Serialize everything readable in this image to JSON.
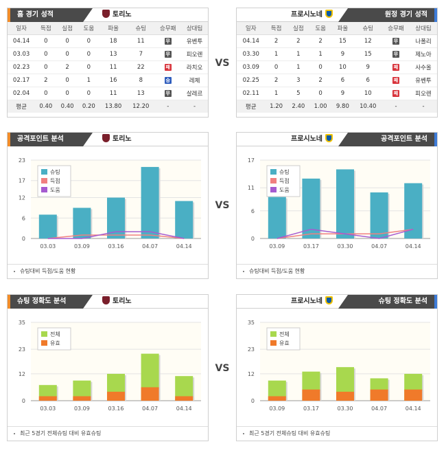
{
  "vs_label": "VS",
  "home": {
    "tab": "홈 경기 성적",
    "team": "토리노",
    "columns": [
      "일자",
      "득점",
      "실점",
      "도움",
      "파울",
      "슈팅",
      "승무패",
      "상대팀"
    ],
    "rows": [
      {
        "date": "04.14",
        "gf": "0",
        "ga": "0",
        "as": "0",
        "fo": "18",
        "sh": "11",
        "res": "d",
        "res_label": "무",
        "opp": "유벤투"
      },
      {
        "date": "03.03",
        "gf": "0",
        "ga": "0",
        "as": "0",
        "fo": "13",
        "sh": "7",
        "res": "d",
        "res_label": "무",
        "opp": "피오렌"
      },
      {
        "date": "02.23",
        "gf": "0",
        "ga": "2",
        "as": "0",
        "fo": "11",
        "sh": "22",
        "res": "l",
        "res_label": "패",
        "opp": "라치오"
      },
      {
        "date": "02.17",
        "gf": "2",
        "ga": "0",
        "as": "1",
        "fo": "16",
        "sh": "8",
        "res": "w",
        "res_label": "승",
        "opp": "레체"
      },
      {
        "date": "02.04",
        "gf": "0",
        "ga": "0",
        "as": "0",
        "fo": "11",
        "sh": "13",
        "res": "d",
        "res_label": "무",
        "opp": "살레르"
      }
    ],
    "avg": {
      "label": "평균",
      "gf": "0.40",
      "ga": "0.40",
      "as": "0.20",
      "fo": "13.80",
      "sh": "12.20",
      "res": "-",
      "opp": "-"
    }
  },
  "away": {
    "tab": "원정 경기 성적",
    "team": "프로시노네",
    "columns": [
      "일자",
      "득점",
      "실점",
      "도움",
      "파울",
      "슈팅",
      "승무패",
      "상대팀"
    ],
    "rows": [
      {
        "date": "04.14",
        "gf": "2",
        "ga": "2",
        "as": "2",
        "fo": "15",
        "sh": "12",
        "res": "d",
        "res_label": "무",
        "opp": "나폴리"
      },
      {
        "date": "03.30",
        "gf": "1",
        "ga": "1",
        "as": "1",
        "fo": "9",
        "sh": "15",
        "res": "d",
        "res_label": "무",
        "opp": "제노아"
      },
      {
        "date": "03.09",
        "gf": "0",
        "ga": "1",
        "as": "0",
        "fo": "10",
        "sh": "9",
        "res": "l",
        "res_label": "패",
        "opp": "사수올"
      },
      {
        "date": "02.25",
        "gf": "2",
        "ga": "3",
        "as": "2",
        "fo": "6",
        "sh": "6",
        "res": "l",
        "res_label": "패",
        "opp": "유벤투"
      },
      {
        "date": "02.11",
        "gf": "1",
        "ga": "5",
        "as": "0",
        "fo": "9",
        "sh": "10",
        "res": "l",
        "res_label": "패",
        "opp": "피오렌"
      }
    ],
    "avg": {
      "label": "평균",
      "gf": "1.20",
      "ga": "2.40",
      "as": "1.00",
      "fo": "9.80",
      "sh": "10.40",
      "res": "-",
      "opp": "-"
    }
  },
  "attack_home": {
    "tab": "공격포인트 분석",
    "team": "토리노",
    "note": "슈팅대비 득점/도움 현황"
  },
  "attack_away": {
    "tab": "공격포인트 분석",
    "team": "프로시노네",
    "note": "슈팅대비 득점/도움 현황"
  },
  "acc_home": {
    "tab": "슈팅 정확도 분석",
    "team": "토리노",
    "note": "최근 5경기 전체슈팅 대비 유효슈팅"
  },
  "acc_away": {
    "tab": "슈팅 정확도 분석",
    "team": "프로시노네",
    "note": "최근 5경기 전체슈팅 대비 유효슈팅"
  },
  "colors": {
    "shoot": "#4aafc4",
    "goal": "#f08080",
    "assist": "#a55bd0",
    "total": "#a8d84e",
    "on_target": "#f07a2a"
  },
  "chart_data": [
    {
      "id": "attack_home",
      "type": "bar",
      "categories": [
        "03.03",
        "03.09",
        "03.16",
        "04.07",
        "04.14"
      ],
      "yticks": [
        0,
        6,
        12,
        17,
        23
      ],
      "ylim": [
        0,
        23
      ],
      "series": [
        {
          "name": "슈팅",
          "kind": "bar",
          "values": [
            7,
            9,
            12,
            21,
            11
          ]
        },
        {
          "name": "득점",
          "kind": "line",
          "values": [
            0,
            1,
            1,
            1,
            0
          ]
        },
        {
          "name": "도움",
          "kind": "line",
          "values": [
            0,
            0,
            2,
            2,
            0
          ]
        }
      ]
    },
    {
      "id": "attack_away",
      "type": "bar",
      "categories": [
        "03.09",
        "03.17",
        "03.30",
        "04.07",
        "04.14"
      ],
      "yticks": [
        0,
        6,
        11,
        17
      ],
      "ylim": [
        0,
        17
      ],
      "series": [
        {
          "name": "슈팅",
          "kind": "bar",
          "values": [
            9,
            13,
            15,
            10,
            12
          ]
        },
        {
          "name": "득점",
          "kind": "line",
          "values": [
            0,
            1,
            1,
            1,
            2
          ]
        },
        {
          "name": "도움",
          "kind": "line",
          "values": [
            0,
            2,
            1,
            0,
            2
          ]
        }
      ]
    },
    {
      "id": "acc_home",
      "type": "bar",
      "categories": [
        "03.03",
        "03.09",
        "03.16",
        "04.07",
        "04.14"
      ],
      "yticks": [
        0,
        12,
        23,
        35
      ],
      "ylim": [
        0,
        35
      ],
      "series": [
        {
          "name": "전체",
          "kind": "bar",
          "values": [
            7,
            9,
            12,
            21,
            11
          ]
        },
        {
          "name": "유효",
          "kind": "bar",
          "values": [
            2,
            2,
            4,
            6,
            2
          ]
        }
      ]
    },
    {
      "id": "acc_away",
      "type": "bar",
      "categories": [
        "03.09",
        "03.17",
        "03.30",
        "04.07",
        "04.14"
      ],
      "yticks": [
        0,
        12,
        23,
        35
      ],
      "ylim": [
        0,
        35
      ],
      "series": [
        {
          "name": "전체",
          "kind": "bar",
          "values": [
            9,
            13,
            15,
            10,
            12
          ]
        },
        {
          "name": "유효",
          "kind": "bar",
          "values": [
            2,
            5,
            4,
            5,
            5
          ]
        }
      ]
    }
  ]
}
